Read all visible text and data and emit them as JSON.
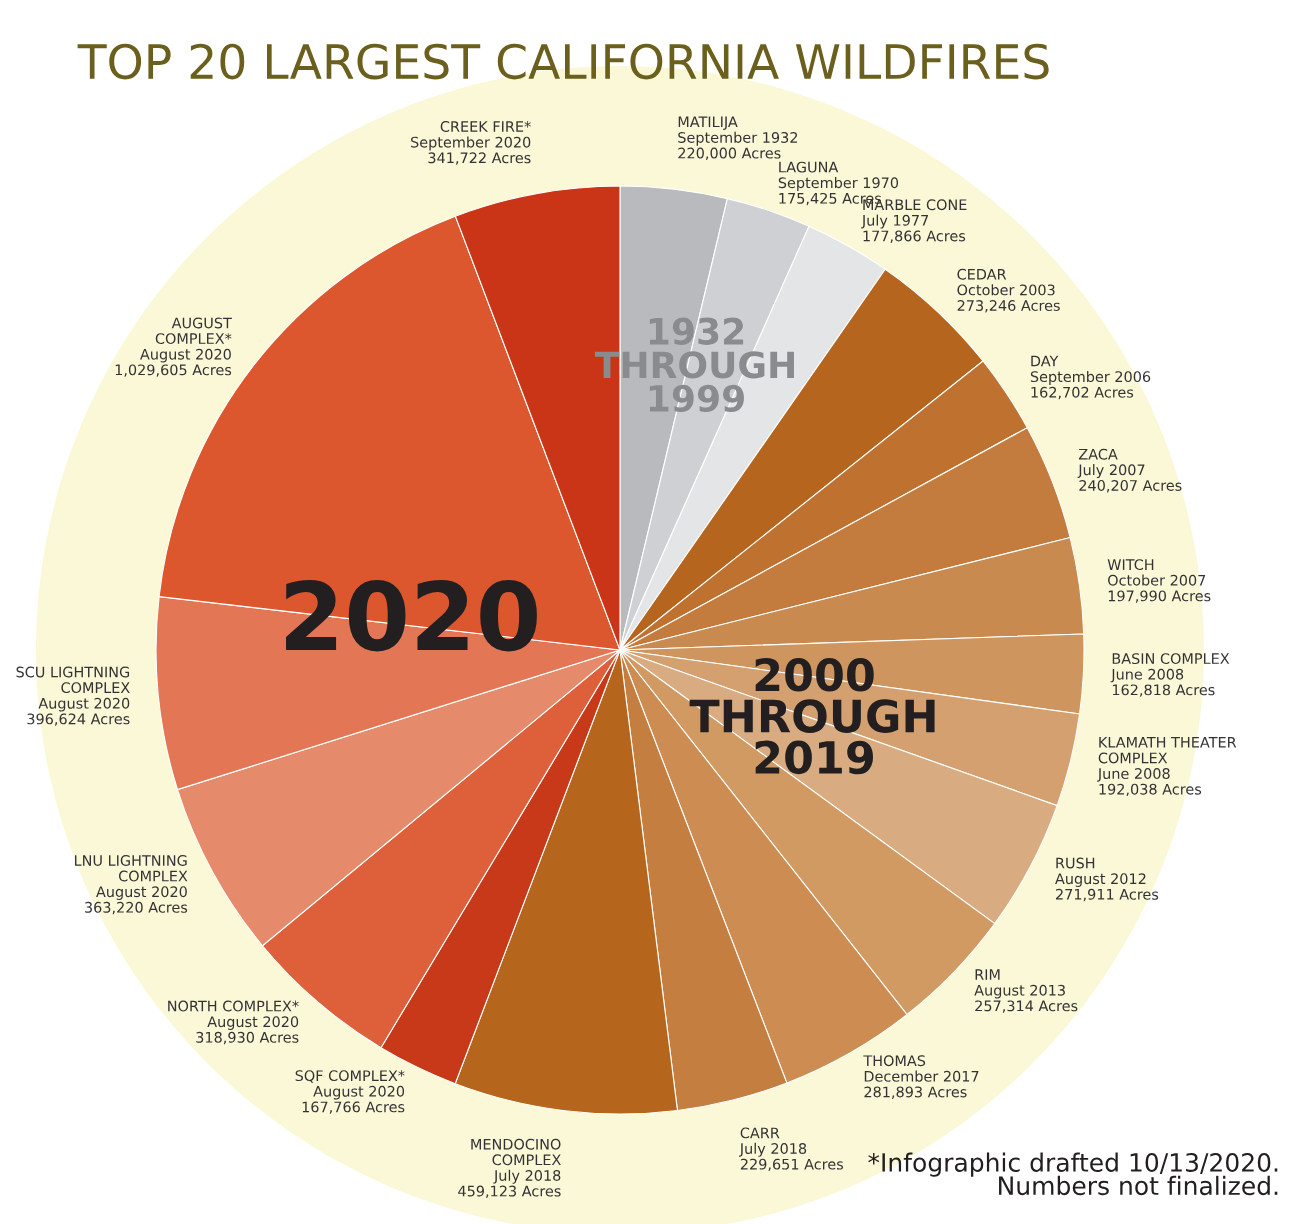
{
  "chart_data": {
    "type": "pie",
    "title": "TOP 20 LARGEST CALIFORNIA WILDFIRES",
    "categories": [
      "MATILIJA\nSeptember 1932",
      "LAGUNA\nSeptember 1970",
      "MARBLE CONE\nJuly 1977",
      "CEDAR\nOctober 2003",
      "DAY\nSeptember 2006",
      "ZACA\nJuly 2007",
      "WITCH\nOctober 2007",
      "BASIN COMPLEX\nJune 2008",
      "KLAMATH THEATER\nCOMPLEX\nJune 2008",
      "RUSH\nAugust 2012",
      "RIM\nAugust 2013",
      "THOMAS\nDecember 2017",
      "CARR\nJuly 2018",
      "MENDOCINO\nCOMPLEX\nJuly 2018",
      "SQF COMPLEX*\nAugust 2020",
      "NORTH COMPLEX*\nAugust 2020",
      "LNU LIGHTNING\nCOMPLEX\nAugust 2020",
      "SCU LIGHTNING\nCOMPLEX\nAugust 2020",
      "AUGUST\nCOMPLEX*\nAugust 2020",
      "CREEK FIRE*\nSeptember 2020"
    ],
    "values": [
      220000,
      175425,
      177866,
      273246,
      162702,
      240207,
      197990,
      162818,
      192038,
      271911,
      257314,
      281893,
      229651,
      459123,
      167766,
      318930,
      363220,
      396624,
      1029605,
      341722
    ],
    "value_labels": [
      "220,000 Acres",
      "175,425 Acres",
      "177,866 Acres",
      "273,246 Acres",
      "162,702 Acres",
      "240,207 Acres",
      "197,990 Acres",
      "162,818 Acres",
      "192,038 Acres",
      "271,911 Acres",
      "257,314 Acres",
      "281,893 Acres",
      "229,651 Acres",
      "459,123 Acres",
      "167,766 Acres",
      "318,930 Acres",
      "363,220 Acres",
      "396,624 Acres",
      "1,029,605 Acres",
      "341,722 Acres"
    ],
    "colors": [
      "#b9babe",
      "#cfd0d3",
      "#e4e5e7",
      "#b5651d",
      "#bf7130",
      "#c47c3e",
      "#c98a4f",
      "#cf955f",
      "#d4a06f",
      "#d8ac80",
      "#d29a63",
      "#cc8c52",
      "#c37e40",
      "#b6661c",
      "#c8391a",
      "#dd603a",
      "#e58a6a",
      "#e37755",
      "#dc562e",
      "#c93516"
    ],
    "annotations": [
      "2020",
      "1932\nTHROUGH\n1999",
      "2000\nTHROUGH\n2019",
      "*Infographic drafted 10/13/2020.\nNumbers not finalized."
    ]
  }
}
